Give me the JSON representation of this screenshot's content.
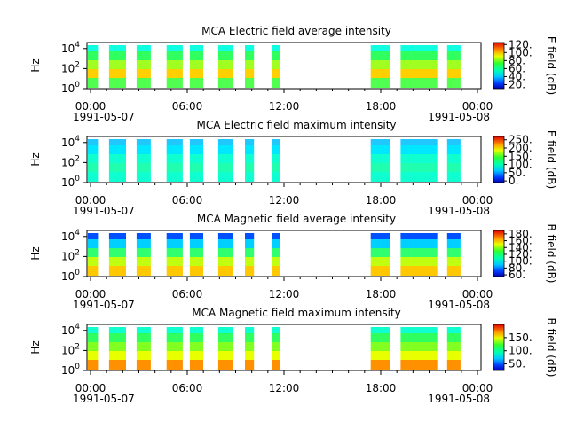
{
  "chart_data": [
    {
      "type": "heatmap",
      "title": "MCA  Electric field average intensity",
      "ylabel": "Hz",
      "y_scale": "log",
      "ylim": [
        1,
        40000
      ],
      "y_ticks": [
        {
          "base": "10",
          "exp": "0"
        },
        {
          "base": "10",
          "exp": "2"
        },
        {
          "base": "10",
          "exp": "4"
        }
      ],
      "x_ticks": [
        "00:00",
        "06:00",
        "12:00",
        "18:00",
        "00:00"
      ],
      "x_start_date": "1991-05-07",
      "x_end_date": "1991-05-08",
      "colorbar": {
        "label": "E field (dB)",
        "range": [
          10,
          125
        ],
        "ticks": [
          "20.",
          "40.",
          "60.",
          "80.",
          "100.",
          "120."
        ]
      }
    },
    {
      "type": "heatmap",
      "title": "MCA  Electric field maximum intensity",
      "ylabel": "Hz",
      "y_scale": "log",
      "ylim": [
        1,
        40000
      ],
      "y_ticks": [
        {
          "base": "10",
          "exp": "0"
        },
        {
          "base": "10",
          "exp": "2"
        },
        {
          "base": "10",
          "exp": "4"
        }
      ],
      "x_ticks": [
        "00:00",
        "06:00",
        "12:00",
        "18:00",
        "00:00"
      ],
      "x_start_date": "1991-05-07",
      "x_end_date": "1991-05-08",
      "colorbar": {
        "label": "E field (dB)",
        "range": [
          -10,
          270
        ],
        "ticks": [
          "0.",
          "50.",
          "100.",
          "150.",
          "200.",
          "250."
        ]
      }
    },
    {
      "type": "heatmap",
      "title": "MCA  Magnetic field average intensity",
      "ylabel": "Hz",
      "y_scale": "log",
      "ylim": [
        1,
        40000
      ],
      "y_ticks": [
        {
          "base": "10",
          "exp": "0"
        },
        {
          "base": "10",
          "exp": "2"
        },
        {
          "base": "10",
          "exp": "4"
        }
      ],
      "x_ticks": [
        "00:00",
        "06:00",
        "12:00",
        "18:00",
        "00:00"
      ],
      "x_start_date": "1991-05-07",
      "x_end_date": "1991-05-08",
      "colorbar": {
        "label": "B field (dB)",
        "range": [
          55,
          190
        ],
        "ticks": [
          "60.",
          "80.",
          "100.",
          "120.",
          "140.",
          "160.",
          "180."
        ]
      }
    },
    {
      "type": "heatmap",
      "title": "MCA  Magnetic field maximum intensity",
      "ylabel": "Hz",
      "y_scale": "log",
      "ylim": [
        1,
        40000
      ],
      "y_ticks": [
        {
          "base": "10",
          "exp": "0"
        },
        {
          "base": "10",
          "exp": "2"
        },
        {
          "base": "10",
          "exp": "4"
        }
      ],
      "x_ticks": [
        "00:00",
        "06:00",
        "12:00",
        "18:00",
        "00:00"
      ],
      "x_start_date": "1991-05-07",
      "x_end_date": "1991-05-08",
      "colorbar": {
        "label": "B field (dB)",
        "range": [
          25,
          200
        ],
        "ticks": [
          "50.",
          "100.",
          "150."
        ]
      }
    }
  ]
}
